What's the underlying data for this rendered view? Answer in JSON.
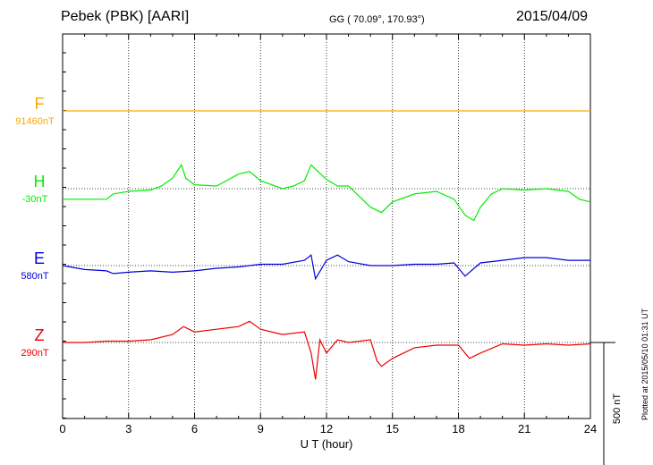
{
  "header": {
    "station": "Pebek (PBK)  [AARI]",
    "coords": "GG ( 70.09°, 170.93°)",
    "date": "2015/04/09"
  },
  "footer": {
    "plotted": "Plotted at 2015/05/10 01:31  UT",
    "scale_label": "500 nT"
  },
  "chart_data": {
    "type": "line",
    "title": "",
    "xlabel": "U T (hour)",
    "ylabel": "",
    "xlim": [
      0,
      24
    ],
    "xticks": [
      "0",
      "3",
      "6",
      "9",
      "12",
      "15",
      "18",
      "21",
      "24"
    ],
    "grid": true,
    "scale_nT": 500,
    "series": [
      {
        "name": "F",
        "baseline_label": "91460nT",
        "color": "#f7a900",
        "x": [
          0,
          2,
          4,
          6,
          8,
          10,
          12,
          14,
          16,
          18,
          20,
          22,
          24
        ],
        "y": [
          0,
          0,
          0,
          0,
          0,
          0,
          0,
          0,
          0,
          0,
          0,
          0,
          0
        ]
      },
      {
        "name": "H",
        "baseline_label": "-30nT",
        "color": "#00ee00",
        "x": [
          0,
          1,
          2,
          2.3,
          3,
          4,
          4.5,
          5,
          5.4,
          5.6,
          6,
          7,
          8,
          8.5,
          9,
          10,
          10.5,
          11,
          11.3,
          11.8,
          12,
          12.5,
          13,
          14,
          14.5,
          15,
          16,
          17,
          17.8,
          18.3,
          18.7,
          19,
          19.5,
          20,
          21,
          22,
          23,
          23.5,
          24
        ],
        "y": [
          -40,
          -40,
          -40,
          -20,
          -10,
          -5,
          10,
          40,
          90,
          40,
          15,
          10,
          55,
          65,
          30,
          0,
          10,
          30,
          90,
          50,
          35,
          10,
          10,
          -70,
          -90,
          -50,
          -20,
          -10,
          -40,
          -100,
          -120,
          -70,
          -20,
          0,
          -5,
          0,
          -10,
          -40,
          -50
        ]
      },
      {
        "name": "E",
        "baseline_label": "580nT",
        "color": "#0000dd",
        "x": [
          0,
          1,
          2,
          2.3,
          3,
          4,
          5,
          6,
          7,
          8,
          9,
          10,
          11,
          11.3,
          11.5,
          12,
          12.5,
          13,
          14,
          15,
          16,
          17,
          17.8,
          18.3,
          19,
          20,
          21,
          22,
          23,
          24
        ],
        "y": [
          0,
          -15,
          -20,
          -30,
          -25,
          -20,
          -25,
          -20,
          -10,
          -5,
          5,
          5,
          20,
          40,
          -50,
          20,
          40,
          15,
          0,
          0,
          5,
          5,
          10,
          -40,
          10,
          20,
          30,
          30,
          20,
          20
        ]
      },
      {
        "name": "Z",
        "baseline_label": "290nT",
        "color": "#ee0000",
        "x": [
          0,
          1,
          2,
          3,
          4,
          5,
          5.5,
          6,
          7,
          8,
          8.5,
          9,
          10,
          11,
          11.3,
          11.5,
          11.7,
          12,
          12.5,
          13,
          14,
          14.3,
          14.5,
          15,
          16,
          17,
          18,
          18.5,
          19,
          20,
          21,
          22,
          23,
          24
        ],
        "y": [
          0,
          0,
          5,
          5,
          10,
          30,
          60,
          40,
          50,
          60,
          80,
          50,
          30,
          40,
          -40,
          -140,
          10,
          -40,
          10,
          0,
          10,
          -70,
          -90,
          -60,
          -20,
          -10,
          -10,
          -60,
          -40,
          -5,
          -10,
          -5,
          -10,
          -5
        ]
      }
    ]
  }
}
